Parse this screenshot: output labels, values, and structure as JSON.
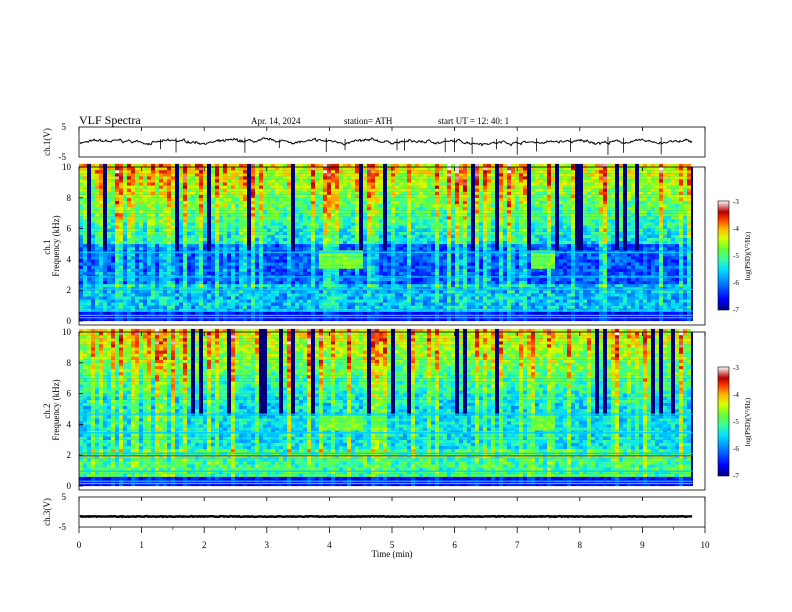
{
  "header": {
    "title": "VLF  Spectra",
    "date": "Apr. 14, 2024",
    "station": "station= ATH",
    "start": "start  UT  =    12: 40: 1"
  },
  "colors": {
    "spectro_scale": [
      "#00007a",
      "#0000ff",
      "#007fff",
      "#00dfff",
      "#3cff99",
      "#66ff33",
      "#d8ff00",
      "#ffb300",
      "#ff3b00",
      "#b40000",
      "#ffffff"
    ]
  },
  "chart_data": [
    {
      "type": "line",
      "name": "ch1-waveform",
      "ylabel": "ch.1(V)",
      "yticks": [
        "5",
        "-5"
      ],
      "ylim": [
        -5,
        5
      ],
      "x_range": [
        0,
        9.8
      ],
      "baseline": 0,
      "spike_minutes": [
        1.3,
        1.55,
        2.65,
        3.2,
        3.95,
        4.25,
        5.08,
        5.2,
        5.85,
        6.0,
        6.28,
        6.67,
        7.0,
        7.31,
        7.85,
        8.45,
        8.7,
        9.3
      ]
    },
    {
      "type": "heatmap",
      "name": "ch1-spectrogram",
      "ylabel_top": "ch.1",
      "ylabel": "Frequency  (kHz)",
      "yticks": [
        "0",
        "2",
        "4",
        "6",
        "8",
        "10"
      ],
      "ylim": [
        0,
        10
      ],
      "x_range": [
        0,
        9.8
      ],
      "colorbar": {
        "label": "log(PSD)(V²/Hz)",
        "ticks": [
          "-3",
          "-4",
          "-5",
          "-6",
          "-7"
        ],
        "range": [
          -7,
          -3
        ]
      },
      "bright_blocks": [
        {
          "x0": 3.82,
          "x1": 4.5,
          "f0": 3.4,
          "f1": 4.6
        },
        {
          "x0": 7.2,
          "x1": 7.55,
          "f0": 3.4,
          "f1": 4.6
        }
      ]
    },
    {
      "type": "heatmap",
      "name": "ch2-spectrogram",
      "ylabel_top": "ch.2",
      "ylabel": "Frequency  (kHz)",
      "yticks": [
        "0",
        "2",
        "4",
        "6",
        "8",
        "10"
      ],
      "ylim": [
        0,
        10
      ],
      "x_range": [
        0,
        9.8
      ],
      "colorbar": {
        "label": "log(PSD)(V²/Hz)",
        "ticks": [
          "-3",
          "-4",
          "-5",
          "-6",
          "-7"
        ],
        "range": [
          -7,
          -3
        ]
      },
      "bright_blocks": [
        {
          "x0": 3.82,
          "x1": 4.5,
          "f0": 3.5,
          "f1": 4.5
        },
        {
          "x0": 7.2,
          "x1": 7.55,
          "f0": 3.5,
          "f1": 4.5
        }
      ]
    },
    {
      "type": "line",
      "name": "ch3-waveform",
      "ylabel": "ch.3(V)",
      "yticks": [
        "5",
        "-5"
      ],
      "ylim": [
        -5,
        5
      ],
      "x_range": [
        0,
        9.8
      ],
      "baseline": -1.5
    }
  ],
  "xaxis": {
    "label": "Time  (min)",
    "ticks": [
      "0",
      "1",
      "2",
      "3",
      "4",
      "5",
      "6",
      "7",
      "8",
      "9",
      "10"
    ],
    "range": [
      0,
      10
    ]
  }
}
